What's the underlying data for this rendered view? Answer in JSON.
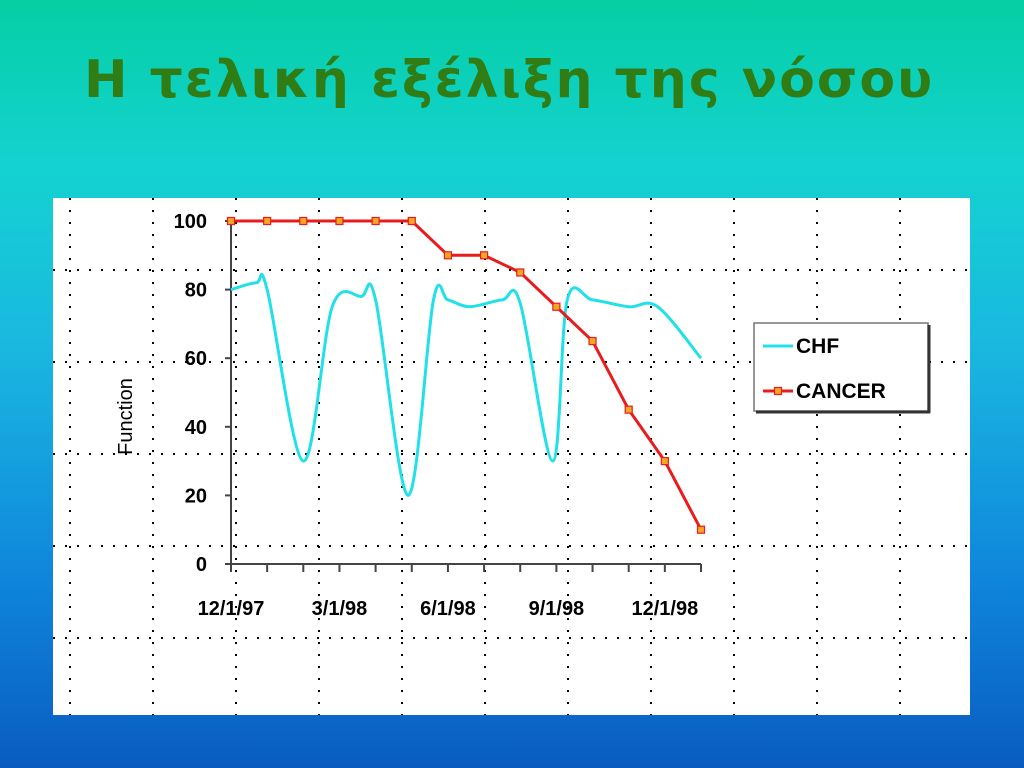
{
  "slide": {
    "title": "Η τελική εξέλιξη της νόσου"
  },
  "chart_data": {
    "type": "line",
    "title": "",
    "xlabel": "",
    "ylabel": "Function",
    "ylim": [
      0,
      100
    ],
    "yticks": [
      0,
      20,
      40,
      60,
      80,
      100
    ],
    "x_tick_labels": [
      "12/1/97",
      "3/1/98",
      "6/1/98",
      "9/1/98",
      "12/1/98"
    ],
    "x_tick_months": [
      0,
      3,
      6,
      9,
      12
    ],
    "x_range_months": [
      0,
      13
    ],
    "grid": "dotted",
    "legend_position": "right",
    "series": [
      {
        "name": "CHF",
        "color": "#22e0e8",
        "marker": "none",
        "smooth": true,
        "x": [
          0,
          0.7,
          1.0,
          2.0,
          2.8,
          3.6,
          4.0,
          4.9,
          5.6,
          6.0,
          6.6,
          7.5,
          8.0,
          8.9,
          9.3,
          10.0,
          11.0,
          11.8,
          13.0
        ],
        "y": [
          80,
          82,
          80,
          30,
          75,
          78,
          77,
          20,
          77,
          77,
          75,
          77,
          76,
          30,
          77,
          77,
          75,
          75,
          60
        ]
      },
      {
        "name": "CANCER",
        "color": "#e81c1c",
        "marker": "square",
        "marker_color": "#f5a623",
        "smooth": false,
        "x": [
          0,
          1,
          2,
          3,
          4,
          5,
          6,
          7,
          8,
          9,
          10,
          11,
          12,
          13
        ],
        "y": [
          100,
          100,
          100,
          100,
          100,
          100,
          90,
          90,
          85,
          75,
          65,
          45,
          30,
          10
        ]
      }
    ]
  }
}
